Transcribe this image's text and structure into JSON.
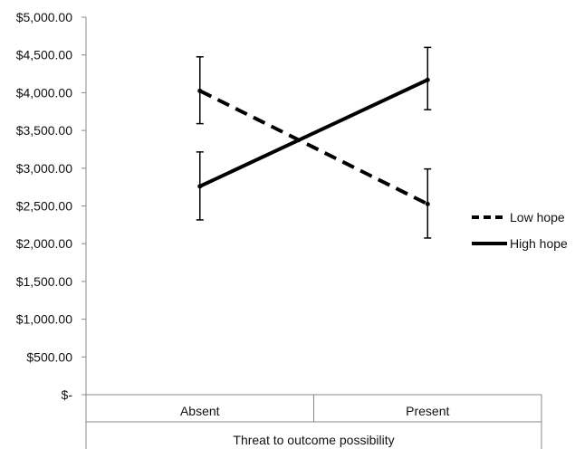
{
  "chart_data": {
    "type": "line",
    "title": "",
    "xlabel": "Threat to outcome possibility",
    "ylabel": "",
    "categories": [
      "Absent",
      "Present"
    ],
    "yticks": [
      "$-",
      "$500.00",
      "$1,000.00",
      "$1,500.00",
      "$2,000.00",
      "$2,500.00",
      "$3,000.00",
      "$3,500.00",
      "$4,000.00",
      "$4,500.00",
      "$5,000.00"
    ],
    "ylim": [
      0,
      5000
    ],
    "grid": false,
    "legend_position": "right",
    "series": [
      {
        "name": "Low hope",
        "style": "dashed",
        "values": [
          4025,
          2525
        ],
        "error_low": [
          3590,
          2075
        ],
        "error_high": [
          4475,
          2990
        ]
      },
      {
        "name": "High hope",
        "style": "solid",
        "values": [
          2760,
          4170
        ],
        "error_low": [
          2315,
          3775
        ],
        "error_high": [
          3215,
          4600
        ]
      }
    ],
    "colors": {
      "line": "#000000",
      "axis": "#888888",
      "text": "#111111"
    }
  }
}
